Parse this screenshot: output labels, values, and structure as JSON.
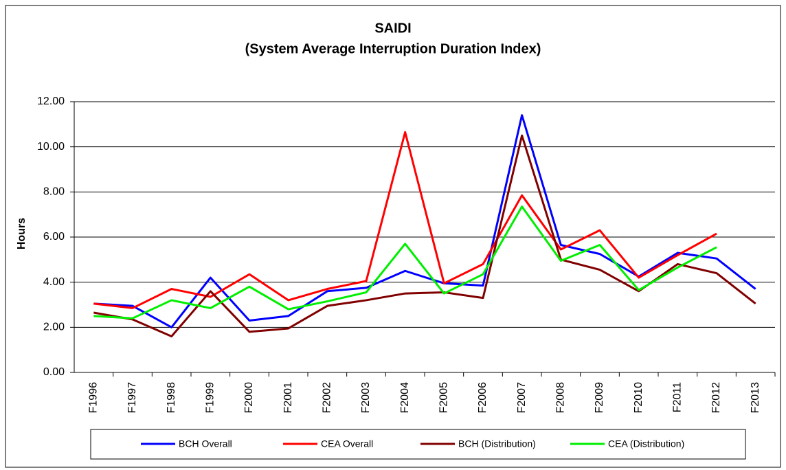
{
  "chart_data": {
    "type": "line",
    "title": "SAIDI",
    "subtitle": "(System  Average Interruption Duration Index)",
    "y_label": "Hours",
    "categories": [
      "F1996",
      "F1997",
      "F1998",
      "F1999",
      "F2000",
      "F2001",
      "F2002",
      "F2003",
      "F2004",
      "F2005",
      "F2006",
      "F2007",
      "F2008",
      "F2009",
      "F2010",
      "F2011",
      "F2012",
      "F2013"
    ],
    "series": [
      {
        "name": "BCH Overall",
        "color": "#0000ff",
        "values": [
          3.05,
          2.95,
          2.0,
          4.2,
          2.3,
          2.5,
          3.6,
          3.75,
          4.5,
          3.95,
          3.85,
          11.4,
          5.65,
          5.25,
          4.25,
          5.3,
          5.05,
          3.7
        ]
      },
      {
        "name": "CEA Overall",
        "color": "#ff0000",
        "values": [
          3.05,
          2.85,
          3.7,
          3.35,
          4.35,
          3.2,
          3.7,
          4.05,
          10.65,
          3.95,
          4.8,
          7.85,
          5.45,
          6.3,
          4.2,
          5.2,
          6.15,
          null
        ]
      },
      {
        "name": "BCH (Distribution)",
        "color": "#800000",
        "values": [
          2.65,
          2.35,
          1.6,
          3.6,
          1.8,
          1.95,
          2.95,
          3.2,
          3.5,
          3.55,
          3.3,
          10.5,
          5.0,
          4.55,
          3.6,
          4.8,
          4.4,
          3.05
        ]
      },
      {
        "name": "CEA (Distribution)",
        "color": "#00ee00",
        "values": [
          2.5,
          2.4,
          3.2,
          2.85,
          3.8,
          2.8,
          3.15,
          3.55,
          5.7,
          3.5,
          4.35,
          7.35,
          4.95,
          5.65,
          3.65,
          4.65,
          5.55,
          null
        ]
      }
    ],
    "ylim": [
      0,
      12
    ],
    "yticks": [
      {
        "value": 0,
        "label": "0.00"
      },
      {
        "value": 2,
        "label": "2.00"
      },
      {
        "value": 4,
        "label": "4.00"
      },
      {
        "value": 6,
        "label": "6.00"
      },
      {
        "value": 8,
        "label": "8.00"
      },
      {
        "value": 10,
        "label": "10.00"
      },
      {
        "value": 12,
        "label": "12.00"
      }
    ],
    "grid": true
  }
}
